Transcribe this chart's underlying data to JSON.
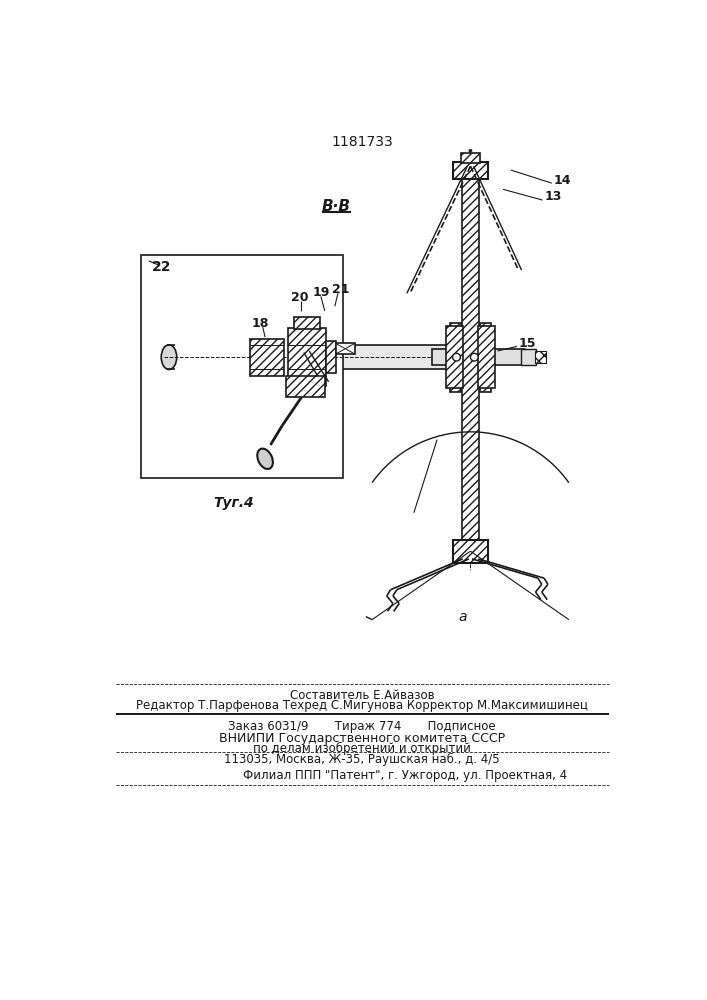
{
  "bg_color": "#ffffff",
  "line_color": "#1a1a1a",
  "title_text": "1181733",
  "section_label": "B·B",
  "fig_label": "Τуг.4",
  "label_14": "14",
  "label_13": "13",
  "label_15": "15",
  "label_18": "18",
  "label_19": "19",
  "label_20": "20",
  "label_21": "21",
  "label_22": "22",
  "footer_line1": "Составитель Е.Айвазов",
  "footer_line2": "Редактор Т.Парфенова Техред С.Мигунова Корректор М.Максимишинец",
  "footer_line3": "Заказ 6031/9       Тираж 774       Подписное",
  "footer_line4": "ВНИИПИ Государственного комитета СССР",
  "footer_line5": "по делам изобретений и открытий",
  "footer_line6": "113035, Москва, Ж-35, Раушская наб., д. 4/5",
  "footer_line7": "Филиал ППП \"Патент\", г. Ужгород, ул. Проектная, 4"
}
